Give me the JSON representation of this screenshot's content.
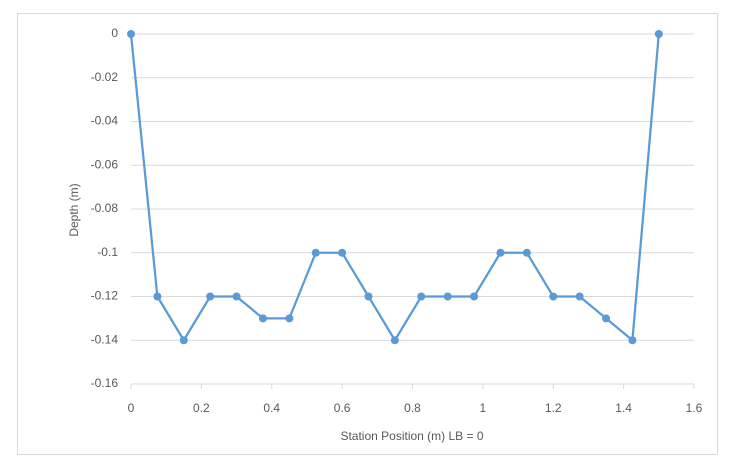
{
  "chart_data": {
    "type": "line",
    "x_label": "Station Position (m) LB = 0",
    "y_label": "Depth (m)",
    "x": [
      0,
      0.075,
      0.15,
      0.225,
      0.3,
      0.375,
      0.45,
      0.525,
      0.6,
      0.675,
      0.75,
      0.825,
      0.9,
      0.975,
      1.05,
      1.125,
      1.2,
      1.275,
      1.35,
      1.425,
      1.5
    ],
    "values": [
      0,
      -0.12,
      -0.14,
      -0.12,
      -0.12,
      -0.13,
      -0.13,
      -0.1,
      -0.1,
      -0.12,
      -0.14,
      -0.12,
      -0.12,
      -0.12,
      -0.1,
      -0.1,
      -0.12,
      -0.12,
      -0.13,
      -0.14,
      0
    ],
    "color": "#5b9bd5",
    "xlim": [
      0,
      1.6
    ],
    "xticks": [
      0,
      0.2,
      0.4,
      0.6,
      0.8,
      1,
      1.2,
      1.4,
      1.6
    ],
    "ylim": [
      -0.16,
      0
    ],
    "yticks": [
      0,
      -0.02,
      -0.04,
      -0.06,
      -0.08,
      -0.1,
      -0.12,
      -0.14,
      -0.16
    ],
    "grid": true
  }
}
